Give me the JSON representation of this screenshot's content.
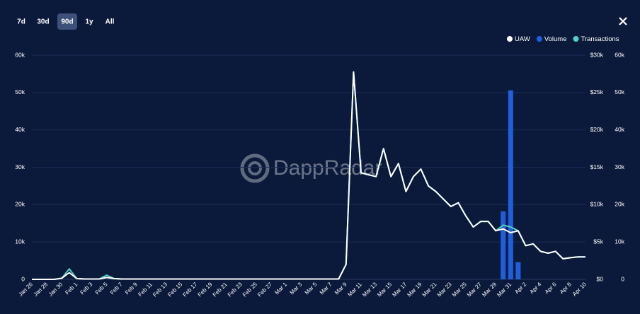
{
  "ui": {
    "ranges": [
      "7d",
      "30d",
      "90d",
      "1y",
      "All"
    ],
    "active_range": "90d",
    "watermark": "DappRadar"
  },
  "chart_data": {
    "type": "combo",
    "categories": [
      "Jan 26",
      null,
      "Jan 28",
      null,
      "Jan 30",
      null,
      "Feb 1",
      null,
      "Feb 3",
      null,
      "Feb 5",
      null,
      "Feb 7",
      null,
      "Feb 9",
      null,
      "Feb 11",
      null,
      "Feb 13",
      null,
      "Feb 15",
      null,
      "Feb 17",
      null,
      "Feb 19",
      null,
      "Feb 21",
      null,
      "Feb 23",
      null,
      "Feb 25",
      null,
      "Feb 27",
      null,
      "Mar 1",
      null,
      "Mar 3",
      null,
      "Mar 5",
      null,
      "Mar 7",
      null,
      "Mar 9",
      null,
      "Mar 11",
      null,
      "Mar 13",
      null,
      "Mar 15",
      null,
      "Mar 17",
      null,
      "Mar 19",
      null,
      "Mar 21",
      null,
      "Mar 23",
      null,
      "Mar 25",
      null,
      "Mar 27",
      null,
      "Mar 29",
      null,
      "Mar 31",
      null,
      "Apr 2",
      null,
      "Apr 4",
      null,
      "Apr 6",
      null,
      "Apr 8",
      null,
      "Apr 10"
    ],
    "series": [
      {
        "name": "UAW",
        "type": "line",
        "axis": "y",
        "color": "#ffffff",
        "values": [
          0,
          0,
          0,
          0,
          300,
          1800,
          200,
          100,
          100,
          100,
          500,
          200,
          100,
          100,
          100,
          100,
          100,
          100,
          100,
          100,
          100,
          100,
          100,
          100,
          100,
          100,
          100,
          100,
          100,
          100,
          100,
          100,
          100,
          100,
          100,
          100,
          100,
          100,
          100,
          100,
          100,
          100,
          4000,
          55500,
          28500,
          28000,
          27500,
          35000,
          27500,
          31000,
          23500,
          27500,
          29500,
          25000,
          23500,
          21500,
          19500,
          20500,
          17000,
          14000,
          15500,
          15500,
          13000,
          13500,
          12500,
          13000,
          9000,
          9500,
          7500,
          7000,
          7500,
          5500,
          5800,
          6000,
          6000
        ]
      },
      {
        "name": "Volume",
        "type": "bar",
        "axis": "y2",
        "color": "#1f5fdc",
        "values": [
          0,
          0,
          0,
          0,
          0,
          0,
          0,
          0,
          0,
          0,
          0,
          0,
          0,
          0,
          0,
          0,
          0,
          0,
          0,
          0,
          0,
          0,
          0,
          0,
          0,
          0,
          0,
          0,
          0,
          0,
          0,
          0,
          0,
          0,
          0,
          0,
          0,
          0,
          0,
          0,
          0,
          0,
          0,
          0,
          0,
          0,
          0,
          0,
          0,
          0,
          0,
          0,
          0,
          0,
          0,
          0,
          0,
          0,
          0,
          0,
          0,
          0,
          0,
          9100,
          25300,
          2300,
          0,
          0,
          0,
          0,
          0,
          0,
          0,
          0,
          0
        ]
      },
      {
        "name": "Transactions",
        "type": "line",
        "axis": "y3",
        "color": "#4fd1c5",
        "values": [
          0,
          0,
          0,
          0,
          300,
          2800,
          200,
          100,
          100,
          100,
          1100,
          200,
          100,
          100,
          100,
          100,
          100,
          100,
          100,
          100,
          100,
          100,
          100,
          100,
          100,
          100,
          100,
          100,
          100,
          100,
          100,
          100,
          100,
          100,
          100,
          100,
          100,
          100,
          100,
          100,
          100,
          100,
          4000,
          55500,
          28500,
          28000,
          27500,
          35000,
          27500,
          31000,
          23500,
          27500,
          29500,
          25000,
          23500,
          21500,
          19500,
          20500,
          17000,
          14000,
          15500,
          15500,
          13000,
          14500,
          14000,
          13000,
          9000,
          9500,
          7500,
          7000,
          7500,
          5500,
          5800,
          6000,
          6000
        ]
      }
    ],
    "ylim": [
      0,
      60000
    ],
    "yticks": [
      0,
      {
        "value": 10000,
        "label": "10k"
      },
      {
        "value": 20000,
        "label": "20k"
      },
      {
        "value": 30000,
        "label": "30k"
      },
      {
        "value": 40000,
        "label": "40k"
      },
      {
        "value": 50000,
        "label": "50k"
      },
      {
        "value": 60000,
        "label": "60k"
      }
    ],
    "y2lim": [
      0,
      30000
    ],
    "y2ticks": [
      {
        "value": 0,
        "label": "$0"
      },
      {
        "value": 5000,
        "label": "$5k"
      },
      {
        "value": 10000,
        "label": "$10k"
      },
      {
        "value": 15000,
        "label": "$15k"
      },
      {
        "value": 20000,
        "label": "$20k"
      },
      {
        "value": 25000,
        "label": "$25k"
      },
      {
        "value": 30000,
        "label": "$30k"
      }
    ],
    "y3lim": [
      0,
      60000
    ],
    "y3ticks": [
      0,
      {
        "value": 10000,
        "label": "10k"
      },
      {
        "value": 20000,
        "label": "20k"
      },
      {
        "value": 30000,
        "label": "30k"
      },
      {
        "value": 40000,
        "label": "40k"
      },
      {
        "value": 50000,
        "label": "50k"
      },
      {
        "value": 60000,
        "label": "60k"
      }
    ],
    "grid": true,
    "legend": "top-right"
  }
}
